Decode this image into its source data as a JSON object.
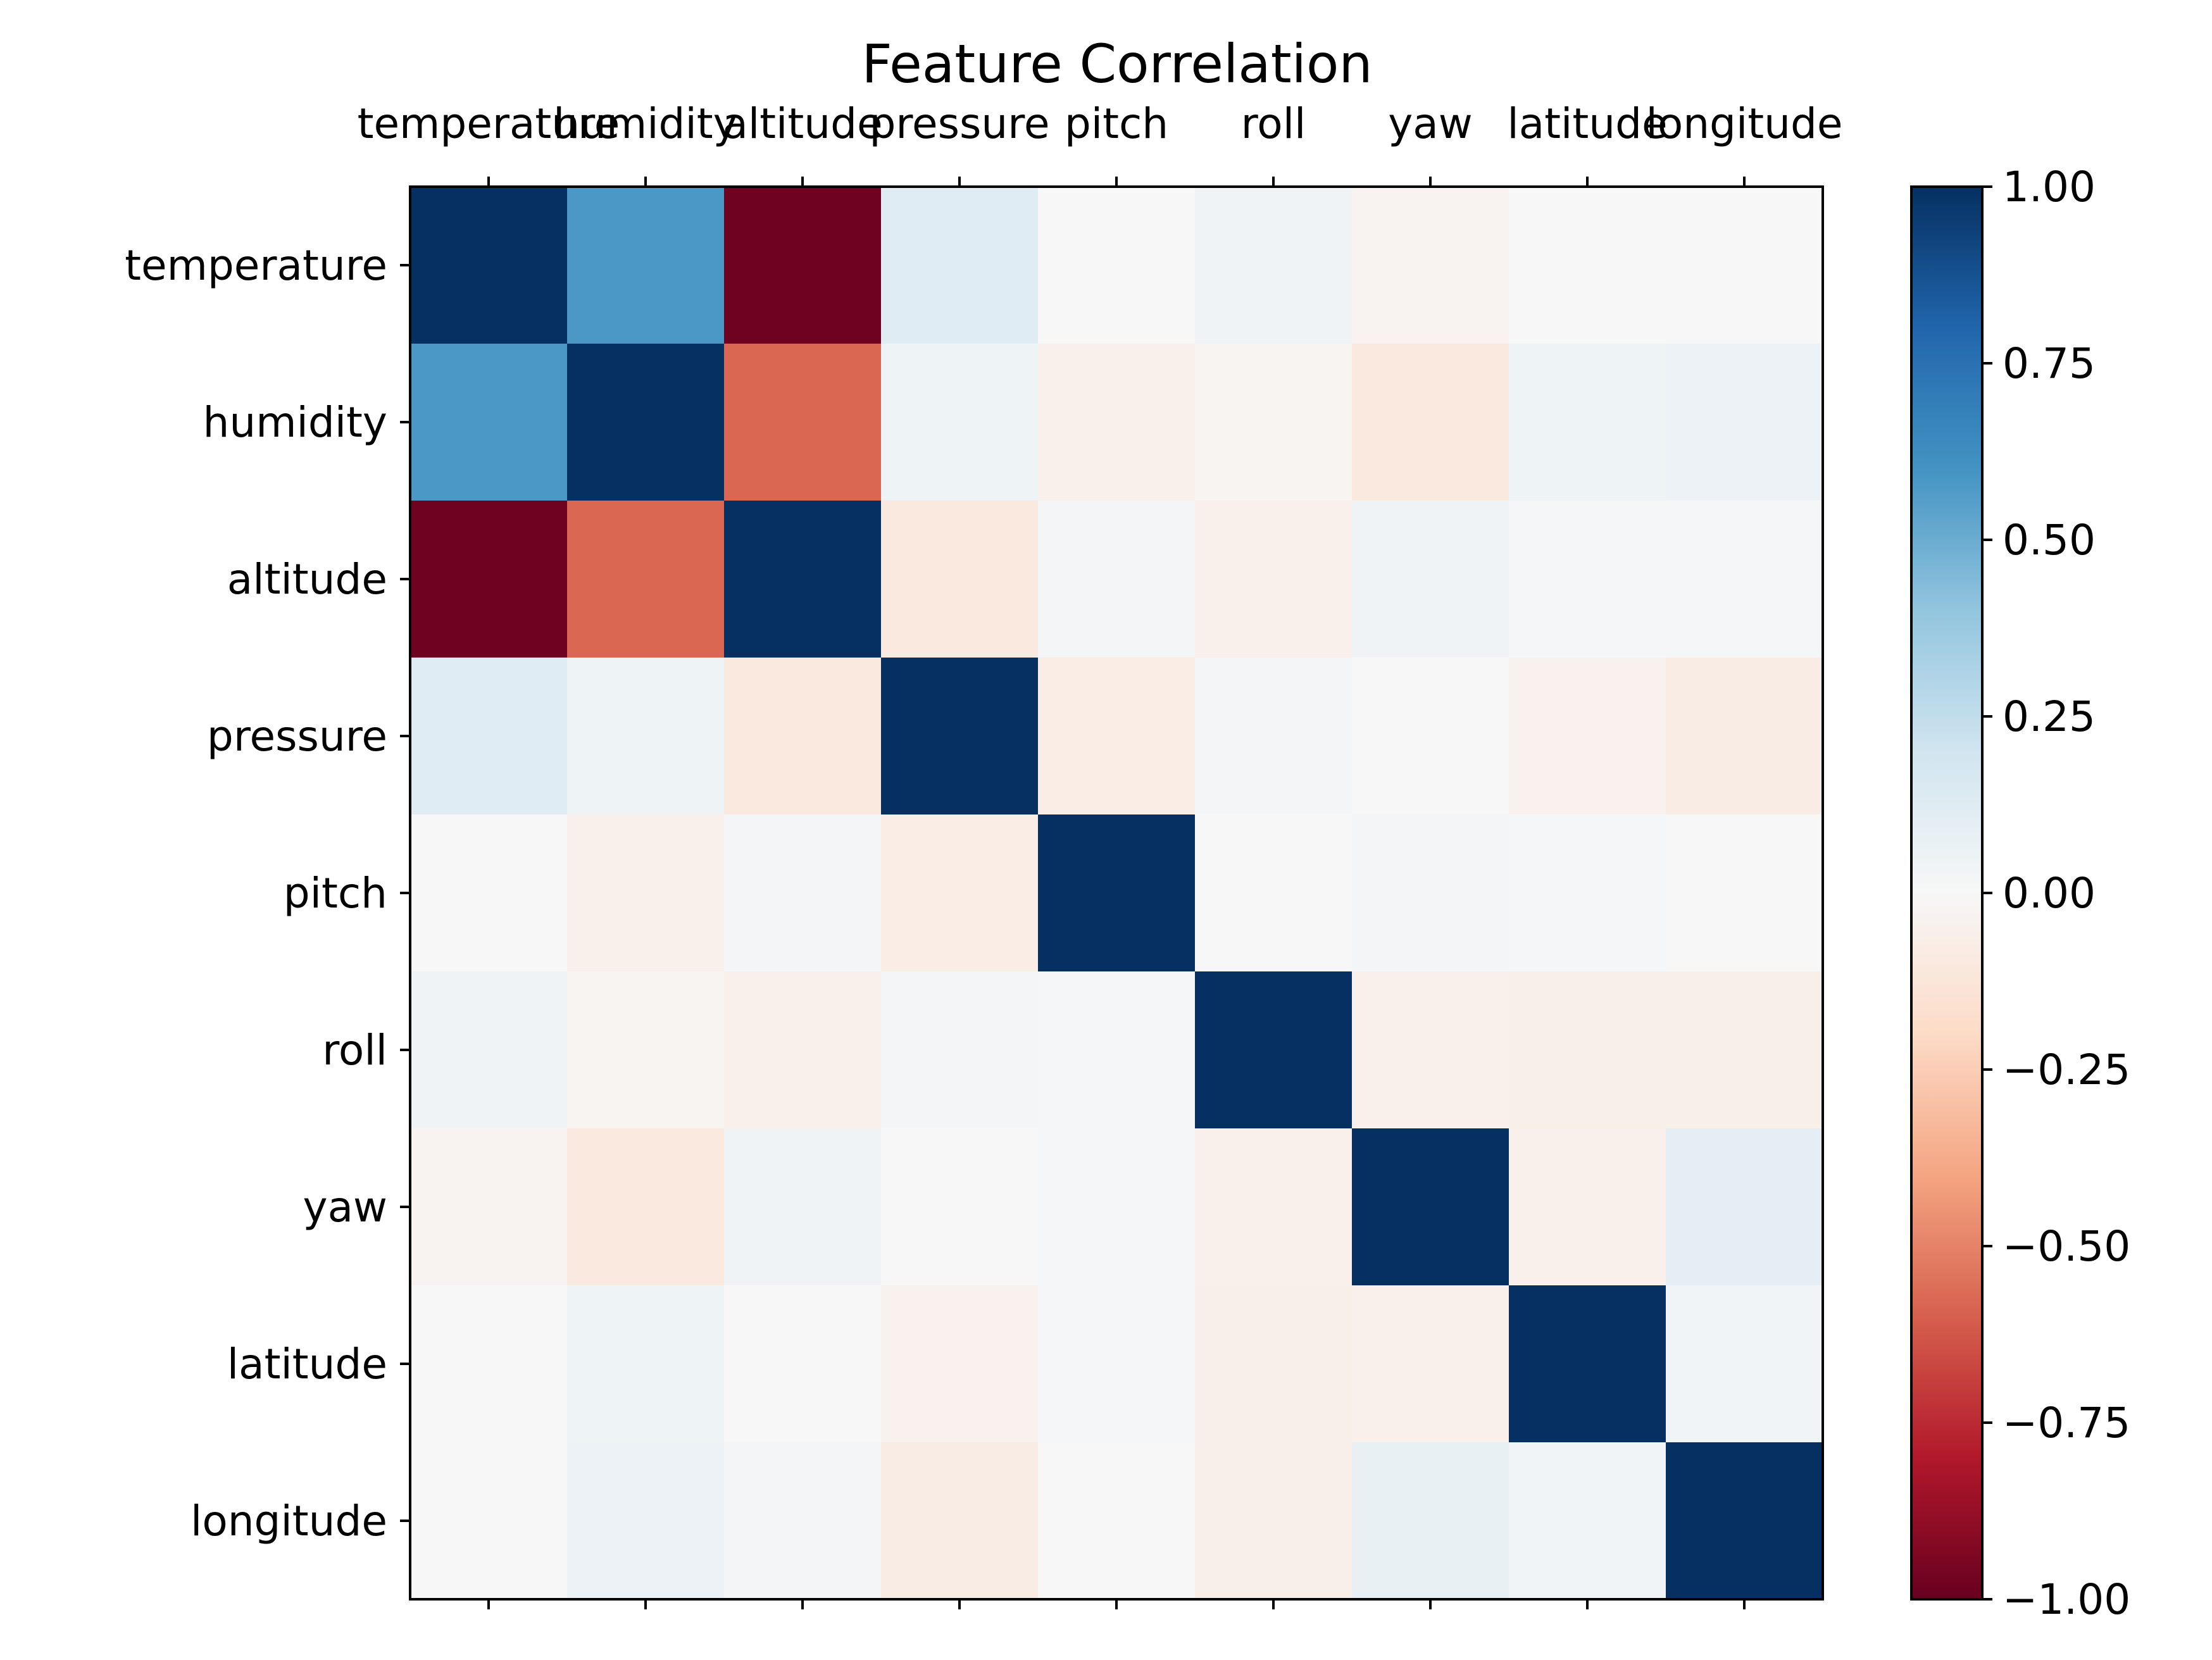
{
  "chart_data": {
    "type": "heatmap",
    "title": "Feature Correlation",
    "labels": [
      "temperature",
      "humidity",
      "altitude",
      "pressure",
      "pitch",
      "roll",
      "yaw",
      "latitude",
      "longitude"
    ],
    "matrix": [
      [
        1.0,
        0.58,
        -0.98,
        0.12,
        0.0,
        0.04,
        -0.03,
        0.0,
        0.0
      ],
      [
        0.58,
        1.0,
        -0.58,
        0.05,
        -0.05,
        -0.02,
        -0.1,
        0.05,
        0.06
      ],
      [
        -0.98,
        -0.58,
        1.0,
        -0.1,
        0.02,
        -0.05,
        0.04,
        0.01,
        0.01
      ],
      [
        0.12,
        0.05,
        -0.1,
        1.0,
        -0.07,
        0.02,
        0.0,
        -0.04,
        -0.08
      ],
      [
        0.0,
        -0.05,
        0.02,
        -0.07,
        1.0,
        0.0,
        0.02,
        0.01,
        0.0
      ],
      [
        0.04,
        -0.02,
        -0.05,
        0.02,
        0.01,
        1.0,
        -0.05,
        -0.06,
        -0.06
      ],
      [
        -0.03,
        -0.1,
        0.04,
        0.0,
        0.01,
        -0.05,
        1.0,
        -0.05,
        0.1
      ],
      [
        0.0,
        0.05,
        0.0,
        -0.04,
        0.01,
        -0.06,
        -0.05,
        1.0,
        0.03
      ],
      [
        0.0,
        0.06,
        0.02,
        -0.08,
        0.0,
        -0.06,
        0.08,
        0.03,
        1.0
      ]
    ],
    "colormap": "RdBu",
    "vmin": -1.0,
    "vmax": 1.0,
    "colorbar_ticks": [
      "1.00",
      "0.75",
      "0.50",
      "0.25",
      "0.00",
      "−0.25",
      "−0.50",
      "−0.75",
      "−1.00"
    ],
    "colorbar_tick_values": [
      1.0,
      0.75,
      0.5,
      0.25,
      0.0,
      -0.25,
      -0.5,
      -0.75,
      -1.0
    ],
    "x_tick_position": "top",
    "grid": false
  }
}
